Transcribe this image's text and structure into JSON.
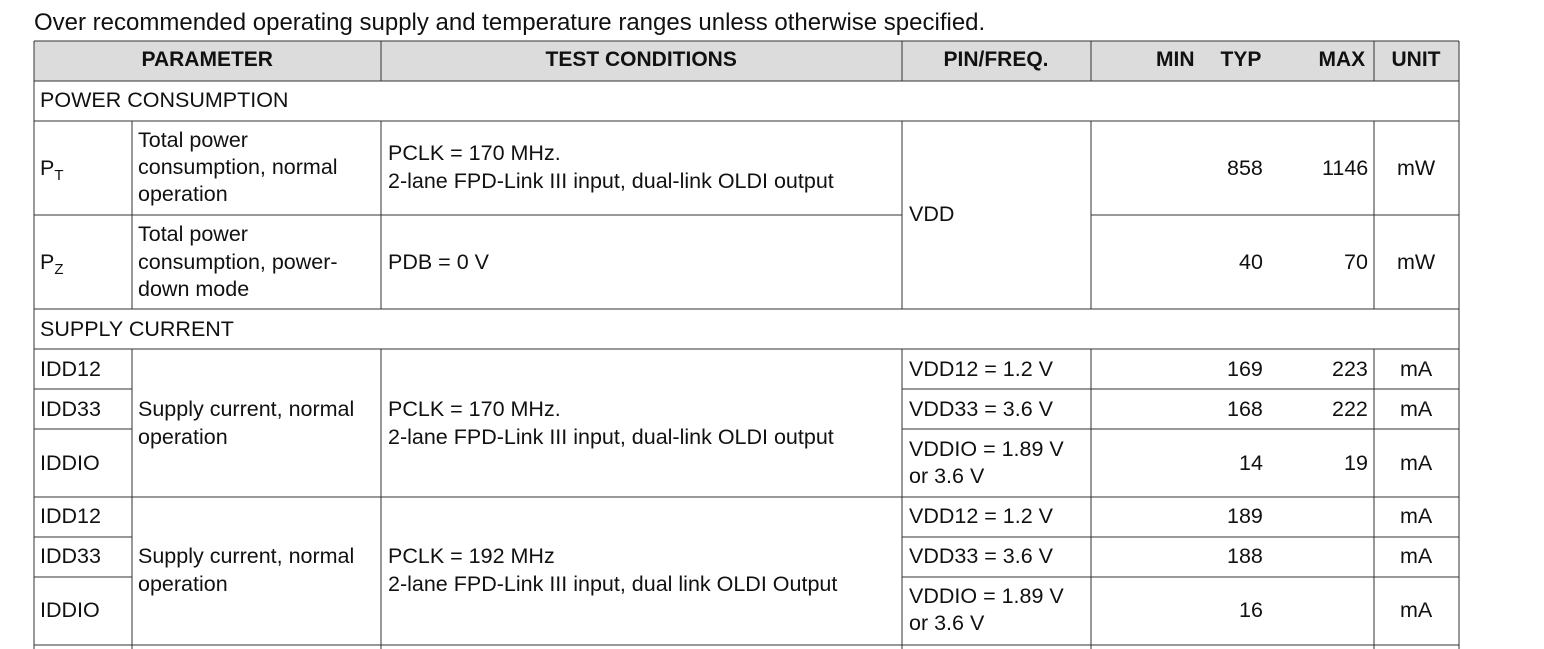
{
  "caption": "Over recommended operating supply and temperature ranges unless otherwise specified.",
  "table": {
    "header": {
      "parameter": "PARAMETER",
      "conditions": "TEST CONDITIONS",
      "pin": "PIN/FREQ.",
      "min": "MIN",
      "typ": "TYP",
      "max": "MAX",
      "unit": "UNIT"
    },
    "sections": [
      {
        "title": "POWER CONSUMPTION",
        "pin": "VDD",
        "rows": [
          {
            "symbol": "P",
            "sub": "T",
            "parameter": [
              "Total power",
              "consumption, normal",
              "operation"
            ],
            "conditions": [
              "PCLK = 170 MHz.",
              "2-lane FPD-Link III input, dual-link OLDI output"
            ],
            "typ": 858,
            "max": 1146,
            "unit": "mW"
          },
          {
            "symbol": "P",
            "sub": "Z",
            "parameter": [
              "Total power",
              "consumption, power-",
              "down mode"
            ],
            "conditions": [
              "PDB = 0 V"
            ],
            "typ": 40,
            "max": 70,
            "unit": "mW"
          }
        ]
      },
      {
        "title": "SUPPLY CURRENT",
        "groups": [
          {
            "parameter": [
              "Supply current, normal",
              "operation"
            ],
            "conditions": [
              "PCLK = 170 MHz.",
              "2-lane FPD-Link III input, dual-link OLDI output"
            ],
            "rows": [
              {
                "symbol": "IDD12",
                "pin": [
                  "VDD12 = 1.2 V"
                ],
                "typ": 169,
                "max": 223,
                "unit": "mA"
              },
              {
                "symbol": "IDD33",
                "pin": [
                  "VDD33 = 3.6 V"
                ],
                "typ": 168,
                "max": 222,
                "unit": "mA"
              },
              {
                "symbol": "IDDIO",
                "pin": [
                  "VDDIO = 1.89 V",
                  "or 3.6 V"
                ],
                "typ": 14,
                "max": 19,
                "unit": "mA"
              }
            ]
          },
          {
            "parameter": [
              "Supply current, normal",
              "operation"
            ],
            "conditions": [
              "PCLK = 192 MHz",
              "2-lane FPD-Link III input, dual link OLDI Output"
            ],
            "rows": [
              {
                "symbol": "IDD12",
                "pin": [
                  "VDD12 = 1.2 V"
                ],
                "typ": 189,
                "unit": "mA"
              },
              {
                "symbol": "IDD33",
                "pin": [
                  "VDD33 = 3.6 V"
                ],
                "typ": 188,
                "unit": "mA"
              },
              {
                "symbol": "IDDIO",
                "pin": [
                  "VDDIO = 1.89 V",
                  "or 3.6 V"
                ],
                "typ": 16,
                "unit": "mA"
              }
            ]
          }
        ]
      }
    ]
  }
}
